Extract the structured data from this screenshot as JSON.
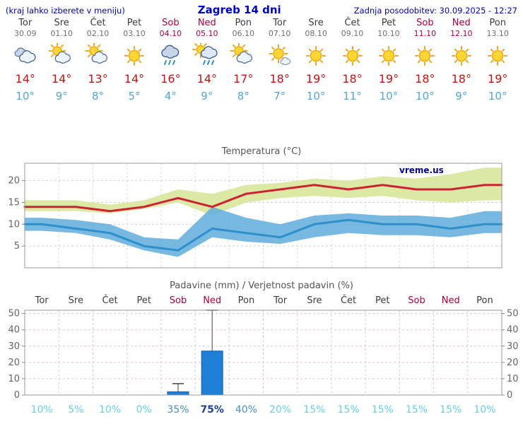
{
  "header": {
    "left": "(kraj lahko izberete v meniju)",
    "title": "Zagreb 14 dni",
    "updated": "Zadnja posodobitev: 30.09.2025 - 12:27"
  },
  "colors": {
    "accent_blue": "#0000cc",
    "weekday_text": "#3c3c3c",
    "weekend_text": "#b00038",
    "max_temp_text": "#cc1111",
    "min_temp_text": "#4fa8dc",
    "band_green": "#dce9a4",
    "band_blue": "#5faddc",
    "line_red": "#cc2233",
    "line_blue": "#2e8fcb",
    "bar_fill": "#1e7fd6",
    "bar_edge": "#1a5fa8",
    "watermark_blue": "#000099"
  },
  "days": [
    {
      "name": "Tor",
      "date": "30.09",
      "weekend": false,
      "icon": "cloudy",
      "tmax": "14°",
      "tmin": "10°"
    },
    {
      "name": "Sre",
      "date": "01.10",
      "weekend": false,
      "icon": "partly-cloudy",
      "tmax": "14°",
      "tmin": "9°"
    },
    {
      "name": "Čet",
      "date": "02.10",
      "weekend": false,
      "icon": "partly-cloudy",
      "tmax": "13°",
      "tmin": "8°"
    },
    {
      "name": "Pet",
      "date": "03.10",
      "weekend": false,
      "icon": "sunny",
      "tmax": "14°",
      "tmin": "5°"
    },
    {
      "name": "Sob",
      "date": "04.10",
      "weekend": true,
      "icon": "rain",
      "tmax": "16°",
      "tmin": "4°"
    },
    {
      "name": "Ned",
      "date": "05.10",
      "weekend": true,
      "icon": "rain-sun",
      "tmax": "14°",
      "tmin": "9°"
    },
    {
      "name": "Pon",
      "date": "06.10",
      "weekend": false,
      "icon": "partly-cloudy",
      "tmax": "17°",
      "tmin": "8°"
    },
    {
      "name": "Tor",
      "date": "07.10",
      "weekend": false,
      "icon": "mostly-sunny",
      "tmax": "18°",
      "tmin": "7°"
    },
    {
      "name": "Sre",
      "date": "08.10",
      "weekend": false,
      "icon": "sunny",
      "tmax": "19°",
      "tmin": "10°"
    },
    {
      "name": "Čet",
      "date": "09.10",
      "weekend": false,
      "icon": "sunny",
      "tmax": "18°",
      "tmin": "11°"
    },
    {
      "name": "Pet",
      "date": "10.10",
      "weekend": false,
      "icon": "sunny",
      "tmax": "19°",
      "tmin": "10°"
    },
    {
      "name": "Sob",
      "date": "11.10",
      "weekend": true,
      "icon": "sunny",
      "tmax": "18°",
      "tmin": "10°"
    },
    {
      "name": "Ned",
      "date": "12.10",
      "weekend": true,
      "icon": "sunny",
      "tmax": "18°",
      "tmin": "9°"
    },
    {
      "name": "Pon",
      "date": "13.10",
      "weekend": false,
      "icon": "sunny",
      "tmax": "19°",
      "tmin": "10°"
    }
  ],
  "chart_data": [
    {
      "type": "line",
      "title": "Temperatura (°C)",
      "watermark": "vreme.us",
      "x_categories": [
        "Tor",
        "Sre",
        "Čet",
        "Pet",
        "Sob",
        "Ned",
        "Pon",
        "Tor",
        "Sre",
        "Čet",
        "Pet",
        "Sob",
        "Ned",
        "Pon"
      ],
      "ylim": [
        0,
        24
      ],
      "yticks": [
        5,
        10,
        15,
        20
      ],
      "grid": true,
      "series": [
        {
          "name": "temp_max",
          "values": [
            14,
            14,
            13,
            14,
            16,
            14,
            17,
            18,
            19,
            18,
            19,
            18,
            18,
            19
          ]
        },
        {
          "name": "temp_min",
          "values": [
            10,
            9,
            8,
            5,
            4,
            9,
            8,
            7,
            10,
            11,
            10,
            10,
            9,
            10
          ]
        },
        {
          "name": "max_band_high",
          "values": [
            15.5,
            15.5,
            14.5,
            15.5,
            18,
            17,
            19,
            19.5,
            20.5,
            20,
            21,
            20.5,
            21.5,
            23
          ]
        },
        {
          "name": "max_band_low",
          "values": [
            13,
            13,
            12.5,
            13.5,
            15,
            12,
            15,
            16,
            16.5,
            16,
            16.5,
            15.5,
            15,
            15.5
          ]
        },
        {
          "name": "min_band_high",
          "values": [
            11.5,
            11,
            10,
            7,
            6.5,
            14,
            11.5,
            10,
            12,
            12.5,
            12,
            12,
            11.5,
            13
          ]
        },
        {
          "name": "min_band_low",
          "values": [
            8.5,
            8,
            6.5,
            4,
            2.5,
            7,
            6,
            5.5,
            7,
            8,
            7.5,
            7.5,
            7,
            8
          ]
        }
      ]
    },
    {
      "type": "bar",
      "title": "Padavine (mm) / Verjetnost padavin (%)",
      "categories": [
        "Tor",
        "Sre",
        "Čet",
        "Pet",
        "Sob",
        "Ned",
        "Pon",
        "Tor",
        "Sre",
        "Čet",
        "Pet",
        "Sob",
        "Ned",
        "Pon"
      ],
      "ylim": [
        0,
        52
      ],
      "yticks": [
        0,
        10,
        20,
        30,
        40,
        50
      ],
      "grid": true,
      "values": [
        0,
        0,
        0,
        0,
        2,
        27,
        0,
        0,
        0,
        0,
        0,
        0,
        0,
        0
      ],
      "whisker_high": [
        0,
        0,
        0,
        0,
        7,
        52,
        0,
        0,
        0,
        0,
        0,
        0,
        0,
        0
      ],
      "probabilities": [
        {
          "label": "10%",
          "level": "low"
        },
        {
          "label": "5%",
          "level": "low"
        },
        {
          "label": "10%",
          "level": "low"
        },
        {
          "label": "0%",
          "level": "low"
        },
        {
          "label": "35%",
          "level": "mid"
        },
        {
          "label": "75%",
          "level": "high"
        },
        {
          "label": "40%",
          "level": "mid"
        },
        {
          "label": "20%",
          "level": "low"
        },
        {
          "label": "15%",
          "level": "low"
        },
        {
          "label": "15%",
          "level": "low"
        },
        {
          "label": "15%",
          "level": "low"
        },
        {
          "label": "15%",
          "level": "low"
        },
        {
          "label": "15%",
          "level": "low"
        },
        {
          "label": "10%",
          "level": "low"
        }
      ]
    }
  ]
}
